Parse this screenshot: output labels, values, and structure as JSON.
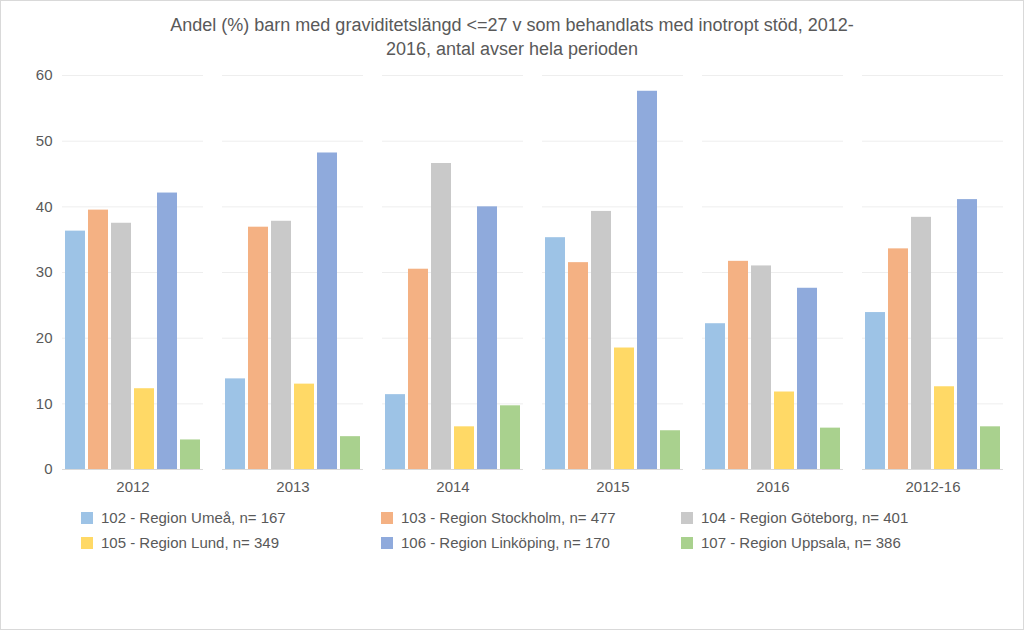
{
  "chart_data": {
    "type": "bar",
    "title": "Andel (%) barn med graviditetslängd <=27 v som behandlats med inotropt stöd, 2012-2016, antal avser hela perioden",
    "categories": [
      "2012",
      "2013",
      "2014",
      "2015",
      "2016",
      "2012-16"
    ],
    "series": [
      {
        "name": "102 - Region Umeå, n= 167",
        "color": "#9dc3e6",
        "values": [
          36.3,
          13.8,
          11.4,
          35.3,
          22.2,
          23.9
        ]
      },
      {
        "name": "103 - Region Stockholm, n= 477",
        "color": "#f4b183",
        "values": [
          39.5,
          36.9,
          30.5,
          31.5,
          31.7,
          33.6
        ]
      },
      {
        "name": "104 - Region Göteborg, n= 401",
        "color": "#c9c9c9",
        "values": [
          37.5,
          37.8,
          46.6,
          39.3,
          31.0,
          38.4
        ]
      },
      {
        "name": "105 - Region Lund, n= 349",
        "color": "#ffd966",
        "values": [
          12.3,
          13.0,
          6.5,
          18.5,
          11.8,
          12.6
        ]
      },
      {
        "name": "106 - Region Linköping, n= 170",
        "color": "#8faadc",
        "values": [
          42.1,
          48.2,
          40.0,
          57.6,
          27.6,
          41.1
        ]
      },
      {
        "name": "107 - Region Uppsala, n= 386",
        "color": "#a9d18e",
        "values": [
          4.5,
          5.0,
          9.7,
          5.9,
          6.3,
          6.5
        ]
      }
    ],
    "ylim": [
      0,
      60
    ],
    "yticks": [
      0,
      10,
      20,
      30,
      40,
      50,
      60
    ],
    "grid": true,
    "legend": "bottom"
  }
}
